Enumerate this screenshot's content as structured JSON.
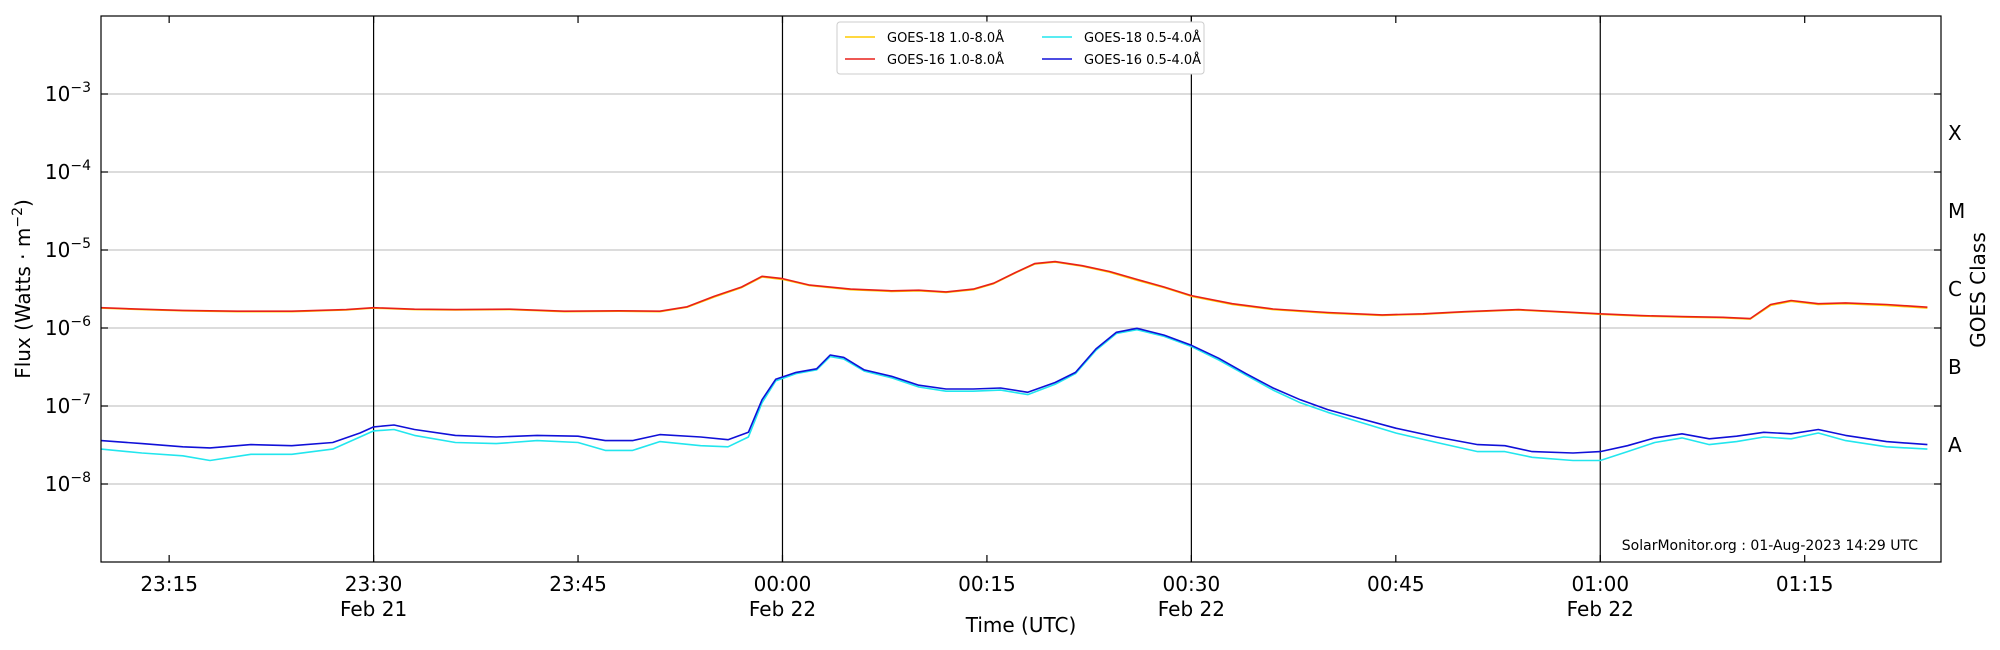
{
  "chart_data": {
    "type": "line",
    "title": "",
    "xlabel": "Time (UTC)",
    "ylabel_prefix": "Flux (Watts · m",
    "ylabel_sup": "−2",
    "ylabel_suffix": ")",
    "right_label": "GOES Class",
    "y_scale": "log",
    "ylim": [
      1e-09,
      0.01
    ],
    "xlim_minutes": [
      1390,
      1525
    ],
    "grid": "horizontal at decades",
    "legend_placement": "top-center",
    "x_ticks": [
      {
        "t": 1395,
        "line1": "23:15",
        "line2": ""
      },
      {
        "t": 1410,
        "line1": "23:30",
        "line2": "Feb 21"
      },
      {
        "t": 1425,
        "line1": "23:45",
        "line2": ""
      },
      {
        "t": 1440,
        "line1": "00:00",
        "line2": "Feb 22"
      },
      {
        "t": 1455,
        "line1": "00:15",
        "line2": ""
      },
      {
        "t": 1470,
        "line1": "00:30",
        "line2": "Feb 22"
      },
      {
        "t": 1485,
        "line1": "00:45",
        "line2": ""
      },
      {
        "t": 1500,
        "line1": "01:00",
        "line2": "Feb 22"
      },
      {
        "t": 1515,
        "line1": "01:15",
        "line2": ""
      }
    ],
    "vertical_lines": [
      1410,
      1440,
      1470,
      1500
    ],
    "y_ticks": [
      {
        "exp": -8,
        "label": "10",
        "sup": "−8"
      },
      {
        "exp": -7,
        "label": "10",
        "sup": "−7"
      },
      {
        "exp": -6,
        "label": "10",
        "sup": "−6"
      },
      {
        "exp": -5,
        "label": "10",
        "sup": "−5"
      },
      {
        "exp": -4,
        "label": "10",
        "sup": "−4"
      },
      {
        "exp": -3,
        "label": "10",
        "sup": "−3"
      }
    ],
    "class_ticks": [
      {
        "exp": -7.5,
        "label": "A"
      },
      {
        "exp": -6.5,
        "label": "B"
      },
      {
        "exp": -5.5,
        "label": "C"
      },
      {
        "exp": -4.5,
        "label": "M"
      },
      {
        "exp": -3.5,
        "label": "X"
      }
    ],
    "series": [
      {
        "name": "GOES-18 1.0-8.0Å",
        "color": "#ffcc00",
        "points": [
          [
            1390,
            1.8e-06
          ],
          [
            1393,
            1.72e-06
          ],
          [
            1396,
            1.66e-06
          ],
          [
            1400,
            1.62e-06
          ],
          [
            1404,
            1.62e-06
          ],
          [
            1408,
            1.7e-06
          ],
          [
            1410,
            1.8e-06
          ],
          [
            1413,
            1.72e-06
          ],
          [
            1416,
            1.7e-06
          ],
          [
            1420,
            1.72e-06
          ],
          [
            1424,
            1.62e-06
          ],
          [
            1428,
            1.64e-06
          ],
          [
            1431,
            1.62e-06
          ],
          [
            1433,
            1.85e-06
          ],
          [
            1435,
            2.5e-06
          ],
          [
            1437,
            3.3e-06
          ],
          [
            1438.5,
            4.5e-06
          ],
          [
            1440,
            4.2e-06
          ],
          [
            1442,
            3.5e-06
          ],
          [
            1445,
            3.1e-06
          ],
          [
            1448,
            2.95e-06
          ],
          [
            1450,
            3e-06
          ],
          [
            1452,
            2.85e-06
          ],
          [
            1454,
            3.1e-06
          ],
          [
            1455.5,
            3.7e-06
          ],
          [
            1457,
            5e-06
          ],
          [
            1458.5,
            6.6e-06
          ],
          [
            1460,
            7e-06
          ],
          [
            1462,
            6.2e-06
          ],
          [
            1464,
            5.2e-06
          ],
          [
            1466,
            4.1e-06
          ],
          [
            1468,
            3.3e-06
          ],
          [
            1470,
            2.55e-06
          ],
          [
            1473,
            2e-06
          ],
          [
            1476,
            1.72e-06
          ],
          [
            1480,
            1.55e-06
          ],
          [
            1484,
            1.45e-06
          ],
          [
            1487,
            1.5e-06
          ],
          [
            1490,
            1.6e-06
          ],
          [
            1494,
            1.7e-06
          ],
          [
            1497,
            1.6e-06
          ],
          [
            1500,
            1.5e-06
          ],
          [
            1503,
            1.42e-06
          ],
          [
            1506,
            1.38e-06
          ],
          [
            1509,
            1.35e-06
          ],
          [
            1511,
            1.3e-06
          ],
          [
            1512.5,
            1.95e-06
          ],
          [
            1514,
            2.2e-06
          ],
          [
            1516,
            2e-06
          ],
          [
            1518,
            2.05e-06
          ],
          [
            1521,
            1.95e-06
          ],
          [
            1524,
            1.8e-06
          ]
        ]
      },
      {
        "name": "GOES-16 1.0-8.0Å",
        "color": "#e8201a",
        "points": [
          [
            1390,
            1.82e-06
          ],
          [
            1393,
            1.74e-06
          ],
          [
            1396,
            1.68e-06
          ],
          [
            1400,
            1.64e-06
          ],
          [
            1404,
            1.64e-06
          ],
          [
            1408,
            1.72e-06
          ],
          [
            1410,
            1.82e-06
          ],
          [
            1413,
            1.74e-06
          ],
          [
            1416,
            1.72e-06
          ],
          [
            1420,
            1.74e-06
          ],
          [
            1424,
            1.64e-06
          ],
          [
            1428,
            1.66e-06
          ],
          [
            1431,
            1.64e-06
          ],
          [
            1433,
            1.87e-06
          ],
          [
            1435,
            2.55e-06
          ],
          [
            1437,
            3.35e-06
          ],
          [
            1438.5,
            4.6e-06
          ],
          [
            1440,
            4.3e-06
          ],
          [
            1442,
            3.55e-06
          ],
          [
            1445,
            3.15e-06
          ],
          [
            1448,
            3e-06
          ],
          [
            1450,
            3.05e-06
          ],
          [
            1452,
            2.9e-06
          ],
          [
            1454,
            3.15e-06
          ],
          [
            1455.5,
            3.75e-06
          ],
          [
            1457,
            5.05e-06
          ],
          [
            1458.5,
            6.7e-06
          ],
          [
            1460,
            7.1e-06
          ],
          [
            1462,
            6.3e-06
          ],
          [
            1464,
            5.3e-06
          ],
          [
            1466,
            4.2e-06
          ],
          [
            1468,
            3.35e-06
          ],
          [
            1470,
            2.6e-06
          ],
          [
            1473,
            2.05e-06
          ],
          [
            1476,
            1.75e-06
          ],
          [
            1480,
            1.58e-06
          ],
          [
            1484,
            1.47e-06
          ],
          [
            1487,
            1.52e-06
          ],
          [
            1490,
            1.62e-06
          ],
          [
            1494,
            1.72e-06
          ],
          [
            1497,
            1.62e-06
          ],
          [
            1500,
            1.52e-06
          ],
          [
            1503,
            1.44e-06
          ],
          [
            1506,
            1.4e-06
          ],
          [
            1509,
            1.37e-06
          ],
          [
            1511,
            1.32e-06
          ],
          [
            1512.5,
            2e-06
          ],
          [
            1514,
            2.25e-06
          ],
          [
            1516,
            2.05e-06
          ],
          [
            1518,
            2.1e-06
          ],
          [
            1521,
            2e-06
          ],
          [
            1524,
            1.85e-06
          ]
        ]
      },
      {
        "name": "GOES-18 0.5-4.0Å",
        "color": "#22e6ee",
        "points": [
          [
            1390,
            2.8e-08
          ],
          [
            1393,
            2.5e-08
          ],
          [
            1396,
            2.3e-08
          ],
          [
            1398,
            2e-08
          ],
          [
            1401,
            2.4e-08
          ],
          [
            1404,
            2.4e-08
          ],
          [
            1407,
            2.8e-08
          ],
          [
            1409,
            4e-08
          ],
          [
            1410,
            4.8e-08
          ],
          [
            1411.5,
            5e-08
          ],
          [
            1413,
            4.2e-08
          ],
          [
            1416,
            3.4e-08
          ],
          [
            1419,
            3.3e-08
          ],
          [
            1422,
            3.6e-08
          ],
          [
            1425,
            3.4e-08
          ],
          [
            1427,
            2.7e-08
          ],
          [
            1429,
            2.7e-08
          ],
          [
            1431,
            3.5e-08
          ],
          [
            1434,
            3.1e-08
          ],
          [
            1436,
            3e-08
          ],
          [
            1437.5,
            4e-08
          ],
          [
            1438.5,
            1.1e-07
          ],
          [
            1439.5,
            2.1e-07
          ],
          [
            1441,
            2.6e-07
          ],
          [
            1442.5,
            2.9e-07
          ],
          [
            1443.5,
            4.3e-07
          ],
          [
            1444.5,
            4e-07
          ],
          [
            1446,
            2.8e-07
          ],
          [
            1448,
            2.3e-07
          ],
          [
            1450,
            1.75e-07
          ],
          [
            1452,
            1.55e-07
          ],
          [
            1454,
            1.55e-07
          ],
          [
            1456,
            1.6e-07
          ],
          [
            1458,
            1.4e-07
          ],
          [
            1460,
            1.9e-07
          ],
          [
            1461.5,
            2.6e-07
          ],
          [
            1463,
            5.2e-07
          ],
          [
            1464.5,
            8.5e-07
          ],
          [
            1466,
            9.5e-07
          ],
          [
            1468,
            7.8e-07
          ],
          [
            1470,
            5.8e-07
          ],
          [
            1472,
            3.9e-07
          ],
          [
            1474,
            2.5e-07
          ],
          [
            1476,
            1.6e-07
          ],
          [
            1478,
            1.1e-07
          ],
          [
            1480,
            8.3e-08
          ],
          [
            1482,
            6.5e-08
          ],
          [
            1485,
            4.5e-08
          ],
          [
            1488,
            3.4e-08
          ],
          [
            1491,
            2.6e-08
          ],
          [
            1493,
            2.6e-08
          ],
          [
            1495,
            2.2e-08
          ],
          [
            1498,
            2e-08
          ],
          [
            1500,
            2e-08
          ],
          [
            1502,
            2.6e-08
          ],
          [
            1504,
            3.4e-08
          ],
          [
            1506,
            3.9e-08
          ],
          [
            1508,
            3.2e-08
          ],
          [
            1510,
            3.5e-08
          ],
          [
            1512,
            4e-08
          ],
          [
            1514,
            3.8e-08
          ],
          [
            1516,
            4.5e-08
          ],
          [
            1518,
            3.6e-08
          ],
          [
            1521,
            3e-08
          ],
          [
            1524,
            2.8e-08
          ]
        ]
      },
      {
        "name": "GOES-16 0.5-4.0Å",
        "color": "#1010d8",
        "points": [
          [
            1390,
            3.6e-08
          ],
          [
            1393,
            3.3e-08
          ],
          [
            1396,
            3e-08
          ],
          [
            1398,
            2.9e-08
          ],
          [
            1401,
            3.2e-08
          ],
          [
            1404,
            3.1e-08
          ],
          [
            1407,
            3.4e-08
          ],
          [
            1409,
            4.5e-08
          ],
          [
            1410,
            5.4e-08
          ],
          [
            1411.5,
            5.7e-08
          ],
          [
            1413,
            5e-08
          ],
          [
            1416,
            4.2e-08
          ],
          [
            1419,
            4e-08
          ],
          [
            1422,
            4.2e-08
          ],
          [
            1425,
            4.1e-08
          ],
          [
            1427,
            3.6e-08
          ],
          [
            1429,
            3.6e-08
          ],
          [
            1431,
            4.3e-08
          ],
          [
            1434,
            4e-08
          ],
          [
            1436,
            3.7e-08
          ],
          [
            1437.5,
            4.6e-08
          ],
          [
            1438.5,
            1.2e-07
          ],
          [
            1439.5,
            2.2e-07
          ],
          [
            1441,
            2.7e-07
          ],
          [
            1442.5,
            3e-07
          ],
          [
            1443.5,
            4.5e-07
          ],
          [
            1444.5,
            4.2e-07
          ],
          [
            1446,
            2.9e-07
          ],
          [
            1448,
            2.4e-07
          ],
          [
            1450,
            1.85e-07
          ],
          [
            1452,
            1.65e-07
          ],
          [
            1454,
            1.65e-07
          ],
          [
            1456,
            1.7e-07
          ],
          [
            1458,
            1.5e-07
          ],
          [
            1460,
            2e-07
          ],
          [
            1461.5,
            2.7e-07
          ],
          [
            1463,
            5.4e-07
          ],
          [
            1464.5,
            8.8e-07
          ],
          [
            1466,
            9.9e-07
          ],
          [
            1468,
            8.1e-07
          ],
          [
            1470,
            6e-07
          ],
          [
            1472,
            4.1e-07
          ],
          [
            1474,
            2.6e-07
          ],
          [
            1476,
            1.7e-07
          ],
          [
            1478,
            1.2e-07
          ],
          [
            1480,
            9e-08
          ],
          [
            1482,
            7.2e-08
          ],
          [
            1485,
            5.2e-08
          ],
          [
            1488,
            4e-08
          ],
          [
            1491,
            3.2e-08
          ],
          [
            1493,
            3.1e-08
          ],
          [
            1495,
            2.6e-08
          ],
          [
            1498,
            2.5e-08
          ],
          [
            1500,
            2.6e-08
          ],
          [
            1502,
            3.1e-08
          ],
          [
            1504,
            3.9e-08
          ],
          [
            1506,
            4.4e-08
          ],
          [
            1508,
            3.8e-08
          ],
          [
            1510,
            4.1e-08
          ],
          [
            1512,
            4.6e-08
          ],
          [
            1514,
            4.4e-08
          ],
          [
            1516,
            5e-08
          ],
          [
            1518,
            4.2e-08
          ],
          [
            1521,
            3.5e-08
          ],
          [
            1524,
            3.2e-08
          ]
        ]
      }
    ],
    "credit": "SolarMonitor.org : 01-Aug-2023 14:29 UTC"
  }
}
